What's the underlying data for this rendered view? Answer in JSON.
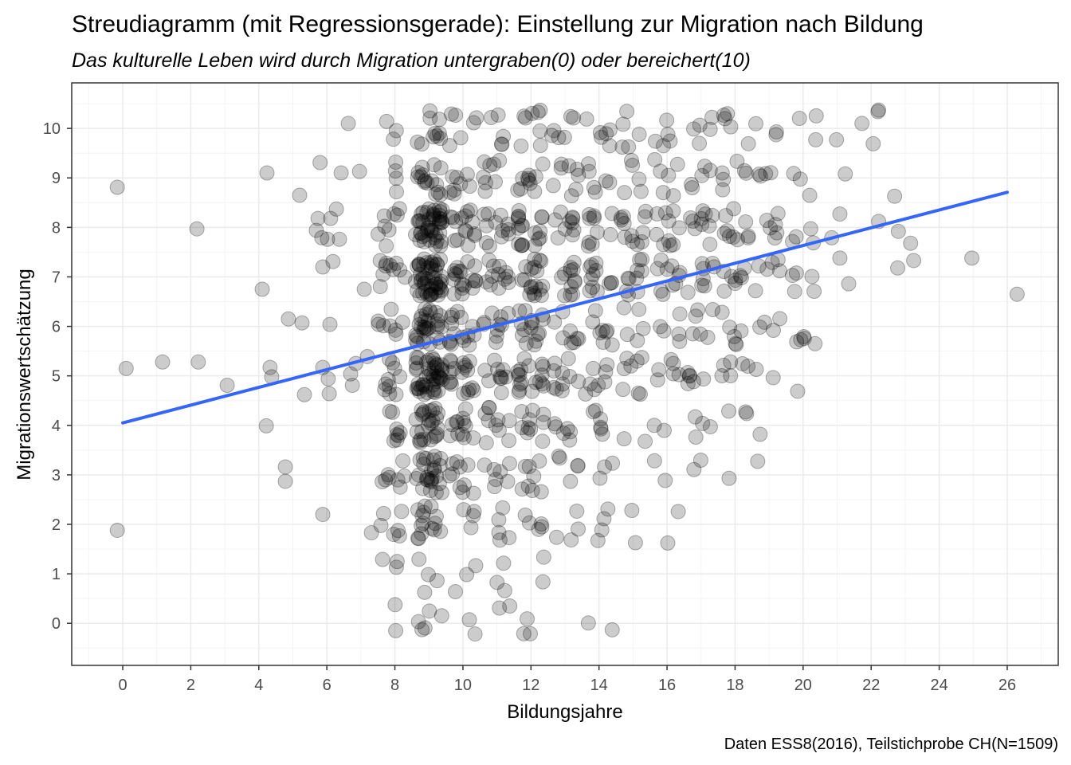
{
  "chart_data": {
    "type": "scatter",
    "title": "Streudiagramm (mit Regressionsgerade): Einstellung zur Migration nach Bildung",
    "subtitle": "Das kulturelle Leben wird durch Migration untergraben(0) oder bereichert(10)",
    "xlabel": "Bildungsjahre",
    "ylabel": "Migrationswertschätzung",
    "caption": "Daten ESS8(2016), Teilstichprobe CH(N=1509)",
    "xlim": [
      -1.5,
      27.5
    ],
    "ylim": [
      -0.85,
      10.92
    ],
    "x_ticks": [
      "0",
      "2",
      "4",
      "6",
      "8",
      "10",
      "12",
      "14",
      "16",
      "18",
      "20",
      "22",
      "24",
      "26"
    ],
    "y_ticks": [
      "0",
      "1",
      "2",
      "3",
      "4",
      "5",
      "6",
      "7",
      "8",
      "9",
      "10"
    ],
    "grid": true,
    "point_color": "#000000",
    "point_alpha": 0.2,
    "regression_line": {
      "color": "#3366FF",
      "x": [
        0,
        26
      ],
      "y": [
        4.05,
        8.71
      ]
    },
    "density_note_y_values": [
      0,
      1,
      2,
      3,
      4,
      5,
      6,
      7,
      8,
      9,
      10
    ],
    "density_counts": {
      "8": [
        2,
        3,
        6,
        8,
        8,
        10,
        8,
        10,
        8,
        4,
        3
      ],
      "9": [
        5,
        4,
        15,
        25,
        25,
        45,
        30,
        50,
        45,
        15,
        10
      ],
      "10": [
        2,
        3,
        4,
        10,
        12,
        18,
        15,
        18,
        15,
        8,
        6
      ],
      "11": [
        2,
        3,
        5,
        7,
        10,
        10,
        10,
        12,
        12,
        8,
        5
      ],
      "12": [
        3,
        2,
        5,
        8,
        10,
        18,
        15,
        18,
        18,
        10,
        8
      ],
      "13": [
        0,
        0,
        4,
        5,
        6,
        10,
        8,
        12,
        10,
        8,
        6
      ],
      "14": [
        2,
        0,
        4,
        3,
        6,
        8,
        8,
        12,
        10,
        6,
        6
      ],
      "15": [
        0,
        0,
        2,
        0,
        2,
        8,
        5,
        10,
        12,
        5,
        5
      ],
      "16": [
        0,
        0,
        2,
        2,
        2,
        6,
        5,
        10,
        10,
        6,
        5
      ],
      "17": [
        0,
        0,
        0,
        2,
        4,
        6,
        6,
        8,
        10,
        5,
        5
      ],
      "18": [
        0,
        0,
        0,
        1,
        3,
        6,
        6,
        8,
        10,
        6,
        5
      ],
      "19": [
        0,
        0,
        0,
        1,
        1,
        2,
        4,
        6,
        6,
        4,
        3
      ],
      "20": [
        0,
        0,
        0,
        0,
        0,
        1,
        3,
        5,
        4,
        3,
        2
      ]
    },
    "points": [
      [
        -0.16,
        8.81
      ],
      [
        0.1,
        5.15
      ],
      [
        -0.16,
        1.88
      ],
      [
        1.17,
        5.28
      ],
      [
        2.18,
        7.97
      ],
      [
        2.22,
        5.28
      ],
      [
        3.07,
        4.81
      ],
      [
        4.1,
        6.75
      ],
      [
        4.24,
        9.1
      ],
      [
        4.33,
        5.17
      ],
      [
        4.38,
        4.98
      ],
      [
        4.22,
        3.99
      ],
      [
        4.78,
        3.16
      ],
      [
        4.78,
        2.87
      ],
      [
        4.87,
        6.15
      ],
      [
        5.27,
        6.07
      ],
      [
        5.34,
        4.62
      ],
      [
        5.2,
        8.65
      ],
      [
        5.74,
        8.18
      ],
      [
        5.8,
        9.31
      ],
      [
        5.69,
        7.94
      ],
      [
        5.85,
        7.79
      ],
      [
        5.88,
        7.2
      ],
      [
        5.88,
        2.2
      ],
      [
        5.88,
        5.17
      ],
      [
        6.04,
        4.94
      ],
      [
        6.07,
        4.64
      ],
      [
        6.09,
        6.04
      ],
      [
        6.02,
        7.76
      ],
      [
        6.18,
        7.31
      ],
      [
        6.11,
        8.18
      ],
      [
        6.28,
        8.37
      ],
      [
        6.37,
        7.76
      ],
      [
        6.42,
        9.1
      ],
      [
        6.63,
        10.1
      ],
      [
        6.7,
        5.04
      ],
      [
        6.75,
        4.81
      ],
      [
        6.96,
        9.13
      ],
      [
        7.1,
        6.75
      ],
      [
        7.31,
        1.83
      ],
      [
        6.85,
        5.25
      ],
      [
        7.19,
        5.39
      ],
      [
        20.37,
        9.77
      ],
      [
        20.98,
        9.77
      ],
      [
        20.84,
        7.79
      ],
      [
        20.35,
        5.65
      ],
      [
        19.93,
        5.73
      ],
      [
        21.73,
        10.1
      ],
      [
        22.2,
        10.34
      ],
      [
        22.22,
        10.37
      ],
      [
        22.06,
        9.69
      ],
      [
        21.08,
        8.27
      ],
      [
        21.24,
        9.08
      ],
      [
        21.08,
        7.38
      ],
      [
        21.34,
        6.86
      ],
      [
        22.22,
        8.12
      ],
      [
        22.69,
        8.63
      ],
      [
        22.8,
        7.92
      ],
      [
        22.78,
        7.18
      ],
      [
        23.16,
        7.68
      ],
      [
        23.25,
        7.33
      ],
      [
        24.96,
        7.38
      ],
      [
        26.29,
        6.65
      ]
    ]
  }
}
